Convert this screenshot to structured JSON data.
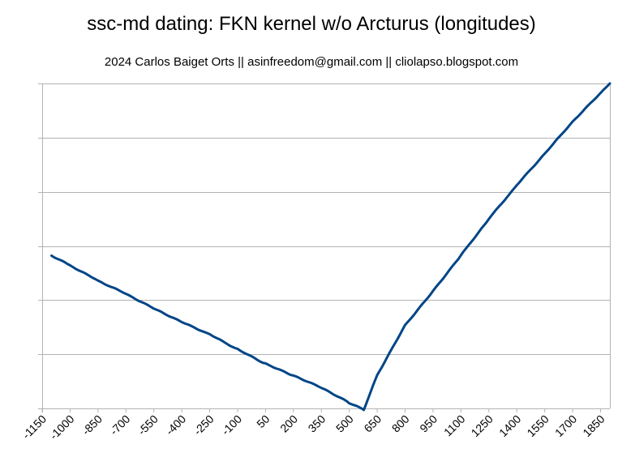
{
  "chart_data": {
    "type": "line",
    "title": "ssc-md dating: FKN kernel w/o Arcturus (longitudes)",
    "subtitle": "2024 Carlos Baiget Orts || asinfreedom@gmail.com || cliolapso.blogspot.com",
    "xlabel": "",
    "ylabel": "",
    "x_tick_labels": [
      "-1150",
      "-1000",
      "-850",
      "-700",
      "-550",
      "-400",
      "-250",
      "-100",
      "50",
      "200",
      "350",
      "500",
      "650",
      "800",
      "950",
      "1100",
      "1250",
      "1400",
      "1550",
      "1700",
      "1850"
    ],
    "x_range": [
      -1150,
      1900
    ],
    "y_range": [
      0,
      6
    ],
    "y_gridlines": 6,
    "y_tick_labels_visible": false,
    "legend": "none",
    "series": [
      {
        "name": "longitudes",
        "color": "#004586",
        "x": [
          -1100,
          -1000,
          -850,
          -700,
          -550,
          -400,
          -250,
          -100,
          50,
          200,
          350,
          500,
          578,
          650,
          800,
          950,
          1100,
          1250,
          1400,
          1550,
          1700,
          1850,
          1900
        ],
        "y": [
          2.82,
          2.64,
          2.36,
          2.12,
          1.85,
          1.6,
          1.37,
          1.09,
          0.82,
          0.6,
          0.38,
          0.1,
          -0.02,
          0.62,
          1.54,
          2.17,
          2.83,
          3.5,
          4.12,
          4.7,
          5.29,
          5.82,
          6.0
        ]
      }
    ]
  }
}
